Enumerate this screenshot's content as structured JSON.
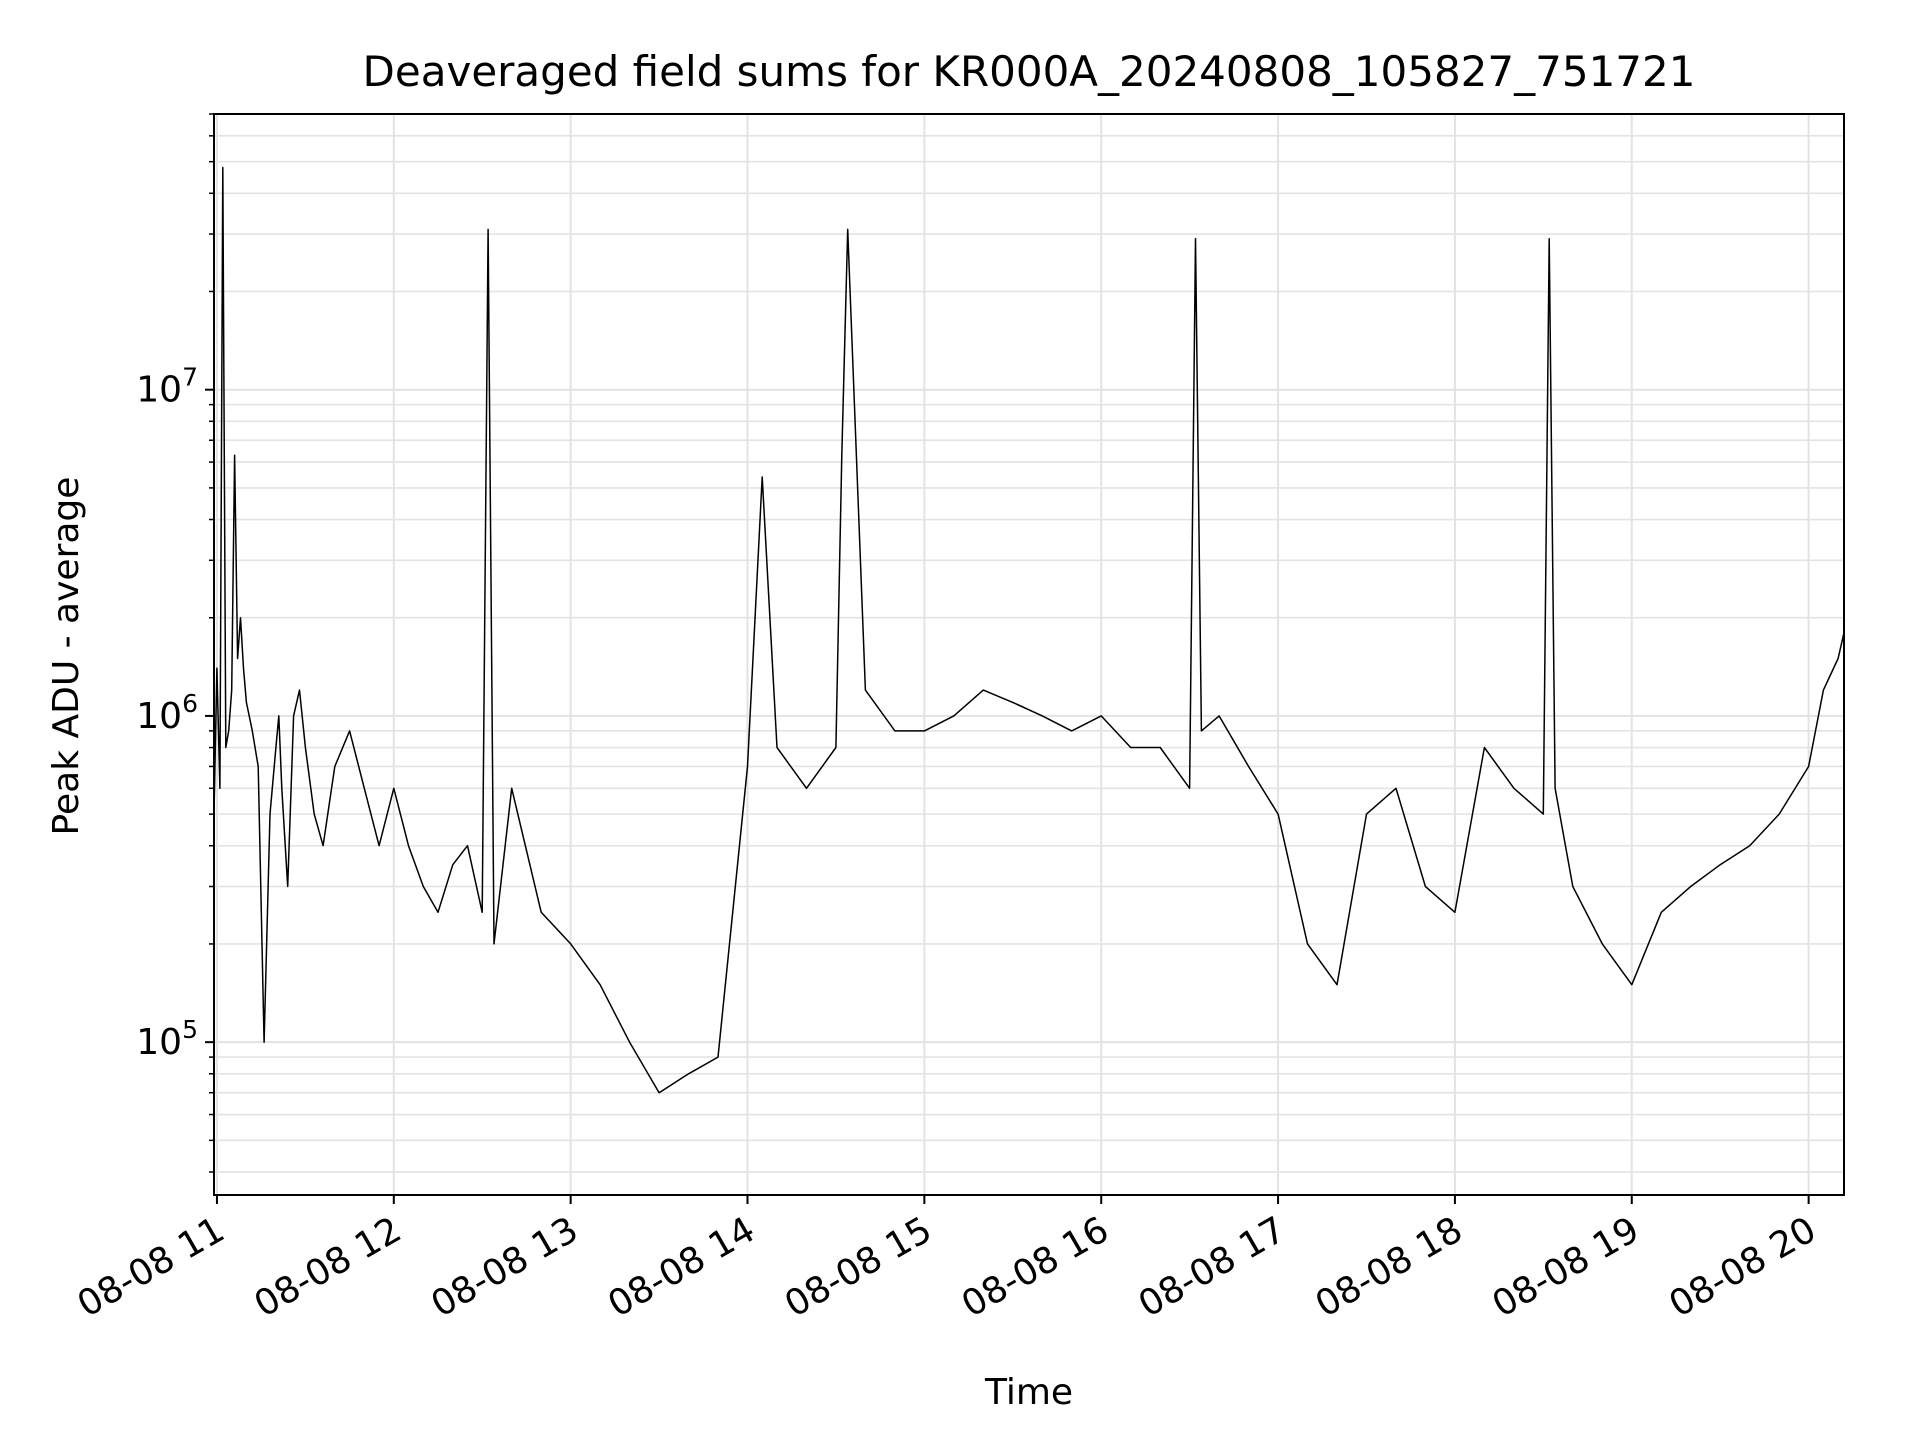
{
  "chart_data": {
    "type": "line",
    "title": "Deaveraged field sums for KR000A_20240808_105827_751721",
    "xlabel": "Time",
    "ylabel": "Peak ADU - average",
    "yscale": "log",
    "ylim": [
      34000,
      70000000
    ],
    "xlim": [
      "2024-08-08 10:59",
      "2024-08-08 20:12"
    ],
    "grid": true,
    "grid_minor_y": true,
    "line_color": "#000000",
    "grid_color": "#e3e3e3",
    "x_ticks": [
      "08-08 11",
      "08-08 12",
      "08-08 13",
      "08-08 14",
      "08-08 15",
      "08-08 16",
      "08-08 17",
      "08-08 18",
      "08-08 19",
      "08-08 20"
    ],
    "x_tick_values": [
      "2024-08-08 11:00",
      "2024-08-08 12:00",
      "2024-08-08 13:00",
      "2024-08-08 14:00",
      "2024-08-08 15:00",
      "2024-08-08 16:00",
      "2024-08-08 17:00",
      "2024-08-08 18:00",
      "2024-08-08 19:00",
      "2024-08-08 20:00"
    ],
    "y_ticks": [
      {
        "value": 100000,
        "base": "10",
        "exp": "5"
      },
      {
        "value": 1000000,
        "base": "10",
        "exp": "6"
      },
      {
        "value": 10000000,
        "base": "10",
        "exp": "7"
      }
    ],
    "series": [
      {
        "x": [
          "2024-08-08 10:59",
          "2024-08-08 11:00",
          "2024-08-08 11:01",
          "2024-08-08 11:02",
          "2024-08-08 11:03",
          "2024-08-08 11:04",
          "2024-08-08 11:05",
          "2024-08-08 11:06",
          "2024-08-08 11:07",
          "2024-08-08 11:08",
          "2024-08-08 11:09",
          "2024-08-08 11:10",
          "2024-08-08 11:12",
          "2024-08-08 11:14",
          "2024-08-08 11:16",
          "2024-08-08 11:18",
          "2024-08-08 11:20",
          "2024-08-08 11:21",
          "2024-08-08 11:22",
          "2024-08-08 11:24",
          "2024-08-08 11:26",
          "2024-08-08 11:28",
          "2024-08-08 11:30",
          "2024-08-08 11:33",
          "2024-08-08 11:36",
          "2024-08-08 11:40",
          "2024-08-08 11:45",
          "2024-08-08 11:50",
          "2024-08-08 11:55",
          "2024-08-08 12:00",
          "2024-08-08 12:05",
          "2024-08-08 12:10",
          "2024-08-08 12:15",
          "2024-08-08 12:20",
          "2024-08-08 12:25",
          "2024-08-08 12:30",
          "2024-08-08 12:32",
          "2024-08-08 12:34",
          "2024-08-08 12:40",
          "2024-08-08 12:50",
          "2024-08-08 13:00",
          "2024-08-08 13:10",
          "2024-08-08 13:20",
          "2024-08-08 13:30",
          "2024-08-08 13:40",
          "2024-08-08 13:50",
          "2024-08-08 14:00",
          "2024-08-08 14:05",
          "2024-08-08 14:10",
          "2024-08-08 14:20",
          "2024-08-08 14:30",
          "2024-08-08 14:32",
          "2024-08-08 14:34",
          "2024-08-08 14:40",
          "2024-08-08 14:50",
          "2024-08-08 15:00",
          "2024-08-08 15:10",
          "2024-08-08 15:20",
          "2024-08-08 15:30",
          "2024-08-08 15:40",
          "2024-08-08 15:50",
          "2024-08-08 16:00",
          "2024-08-08 16:10",
          "2024-08-08 16:20",
          "2024-08-08 16:30",
          "2024-08-08 16:32",
          "2024-08-08 16:34",
          "2024-08-08 16:40",
          "2024-08-08 16:50",
          "2024-08-08 17:00",
          "2024-08-08 17:10",
          "2024-08-08 17:20",
          "2024-08-08 17:30",
          "2024-08-08 17:40",
          "2024-08-08 17:50",
          "2024-08-08 18:00",
          "2024-08-08 18:10",
          "2024-08-08 18:20",
          "2024-08-08 18:30",
          "2024-08-08 18:32",
          "2024-08-08 18:34",
          "2024-08-08 18:40",
          "2024-08-08 18:50",
          "2024-08-08 19:00",
          "2024-08-08 19:10",
          "2024-08-08 19:20",
          "2024-08-08 19:30",
          "2024-08-08 19:40",
          "2024-08-08 19:50",
          "2024-08-08 20:00",
          "2024-08-08 20:05",
          "2024-08-08 20:10",
          "2024-08-08 20:12"
        ],
        "y": [
          500000,
          1400000,
          600000,
          48000000,
          800000,
          900000,
          1200000,
          6300000,
          1500000,
          2000000,
          1400000,
          1100000,
          900000,
          700000,
          100000,
          500000,
          800000,
          1000000,
          600000,
          300000,
          1000000,
          1200000,
          800000,
          500000,
          400000,
          700000,
          900000,
          600000,
          400000,
          600000,
          400000,
          300000,
          250000,
          350000,
          400000,
          250000,
          31000000,
          200000,
          600000,
          250000,
          200000,
          150000,
          100000,
          70000,
          80000,
          90000,
          700000,
          5400000,
          800000,
          600000,
          800000,
          6300000,
          31000000,
          1200000,
          900000,
          900000,
          1000000,
          1200000,
          1100000,
          1000000,
          900000,
          1000000,
          800000,
          800000,
          600000,
          29000000,
          900000,
          1000000,
          700000,
          500000,
          200000,
          150000,
          500000,
          600000,
          300000,
          250000,
          800000,
          600000,
          500000,
          29000000,
          600000,
          300000,
          200000,
          150000,
          250000,
          300000,
          350000,
          400000,
          500000,
          700000,
          1200000,
          1500000,
          1800000
        ]
      }
    ]
  }
}
